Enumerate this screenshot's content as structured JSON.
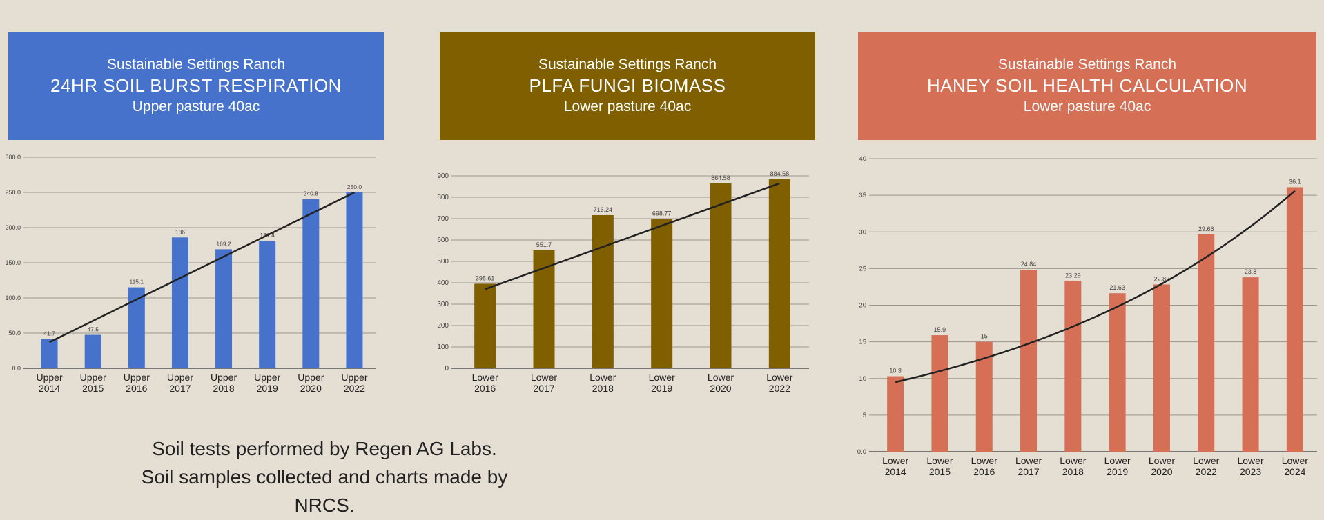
{
  "panels": [
    {
      "banner": {
        "ranch": "Sustainable Settings Ranch",
        "title": "24HR SOIL BURST RESPIRATION",
        "subtitle": "Upper pasture 40ac",
        "color": "#4672cc"
      }
    },
    {
      "banner": {
        "ranch": "Sustainable Settings Ranch",
        "title": "PLFA FUNGI BIOMASS",
        "subtitle": "Lower pasture 40ac",
        "color": "#7f5f00"
      }
    },
    {
      "banner": {
        "ranch": "Sustainable Settings Ranch",
        "title": "HANEY SOIL HEALTH CALCULATION",
        "subtitle": "Lower pasture 40ac",
        "color": "#d56f55"
      }
    }
  ],
  "footer": {
    "line1": "Soil tests performed by Regen AG Labs.",
    "line2": "Soil samples collected and charts made by NRCS."
  },
  "chart_data": [
    {
      "type": "bar",
      "color": "#4672cc",
      "categories": [
        [
          "Upper",
          "2014"
        ],
        [
          "Upper",
          "2015"
        ],
        [
          "Upper",
          "2016"
        ],
        [
          "Upper",
          "2017"
        ],
        [
          "Upper",
          "2018"
        ],
        [
          "Upper",
          "2019"
        ],
        [
          "Upper",
          "2020"
        ],
        [
          "Upper",
          "2022"
        ]
      ],
      "values": [
        41.7,
        47.5,
        115.1,
        186,
        169.2,
        181.4,
        240.8,
        250.0
      ],
      "labels": [
        "41.7",
        "47.5",
        "115.1",
        "186",
        "169.2",
        "181.4",
        "240.8",
        "250.0"
      ],
      "yticks": [
        "0.0",
        "50.0",
        "100.0",
        "150.0",
        "200.0",
        "250.0",
        "300.0"
      ],
      "ylim": [
        0,
        300
      ],
      "trendline": [
        37,
        250
      ],
      "grid": true
    },
    {
      "type": "bar",
      "color": "#7f5f00",
      "categories": [
        [
          "Lower",
          "2016"
        ],
        [
          "Lower",
          "2017"
        ],
        [
          "Lower",
          "2018"
        ],
        [
          "Lower",
          "2019"
        ],
        [
          "Lower",
          "2020"
        ],
        [
          "Lower",
          "2022"
        ]
      ],
      "values": [
        395.61,
        551.7,
        716.24,
        698.77,
        864.58,
        884.58
      ],
      "labels": [
        "395.61",
        "551.7",
        "716.24",
        "698.77",
        "864.58",
        "884.58"
      ],
      "yticks": [
        "0",
        "100",
        "200",
        "300",
        "400",
        "500",
        "600",
        "700",
        "800",
        "900"
      ],
      "ylim": [
        0,
        900
      ],
      "trendline": [
        370,
        865
      ],
      "grid": true
    },
    {
      "type": "bar",
      "color": "#d56f55",
      "categories": [
        [
          "Lower",
          "2014"
        ],
        [
          "Lower",
          "2015"
        ],
        [
          "Lower",
          "2016"
        ],
        [
          "Lower",
          "2017"
        ],
        [
          "Lower",
          "2018"
        ],
        [
          "Lower",
          "2019"
        ],
        [
          "Lower",
          "2020"
        ],
        [
          "Lower",
          "2022"
        ],
        [
          "Lower",
          "2023"
        ],
        [
          "Lower",
          "2024"
        ]
      ],
      "values": [
        10.3,
        15.9,
        15,
        24.84,
        23.29,
        21.63,
        22.83,
        29.66,
        23.8,
        36.1
      ],
      "labels": [
        "10.3",
        "15.9",
        "15",
        "24.84",
        "23.29",
        "21.63",
        "22.83",
        "29.66",
        "23.8",
        "36.1"
      ],
      "yticks": [
        "0.0",
        "5",
        "10",
        "15",
        "20",
        "25",
        "30",
        "35",
        "40"
      ],
      "ylim": [
        0,
        40
      ],
      "trendline": [
        9.5,
        35.6
      ],
      "trend_curve": true,
      "grid": true
    }
  ]
}
